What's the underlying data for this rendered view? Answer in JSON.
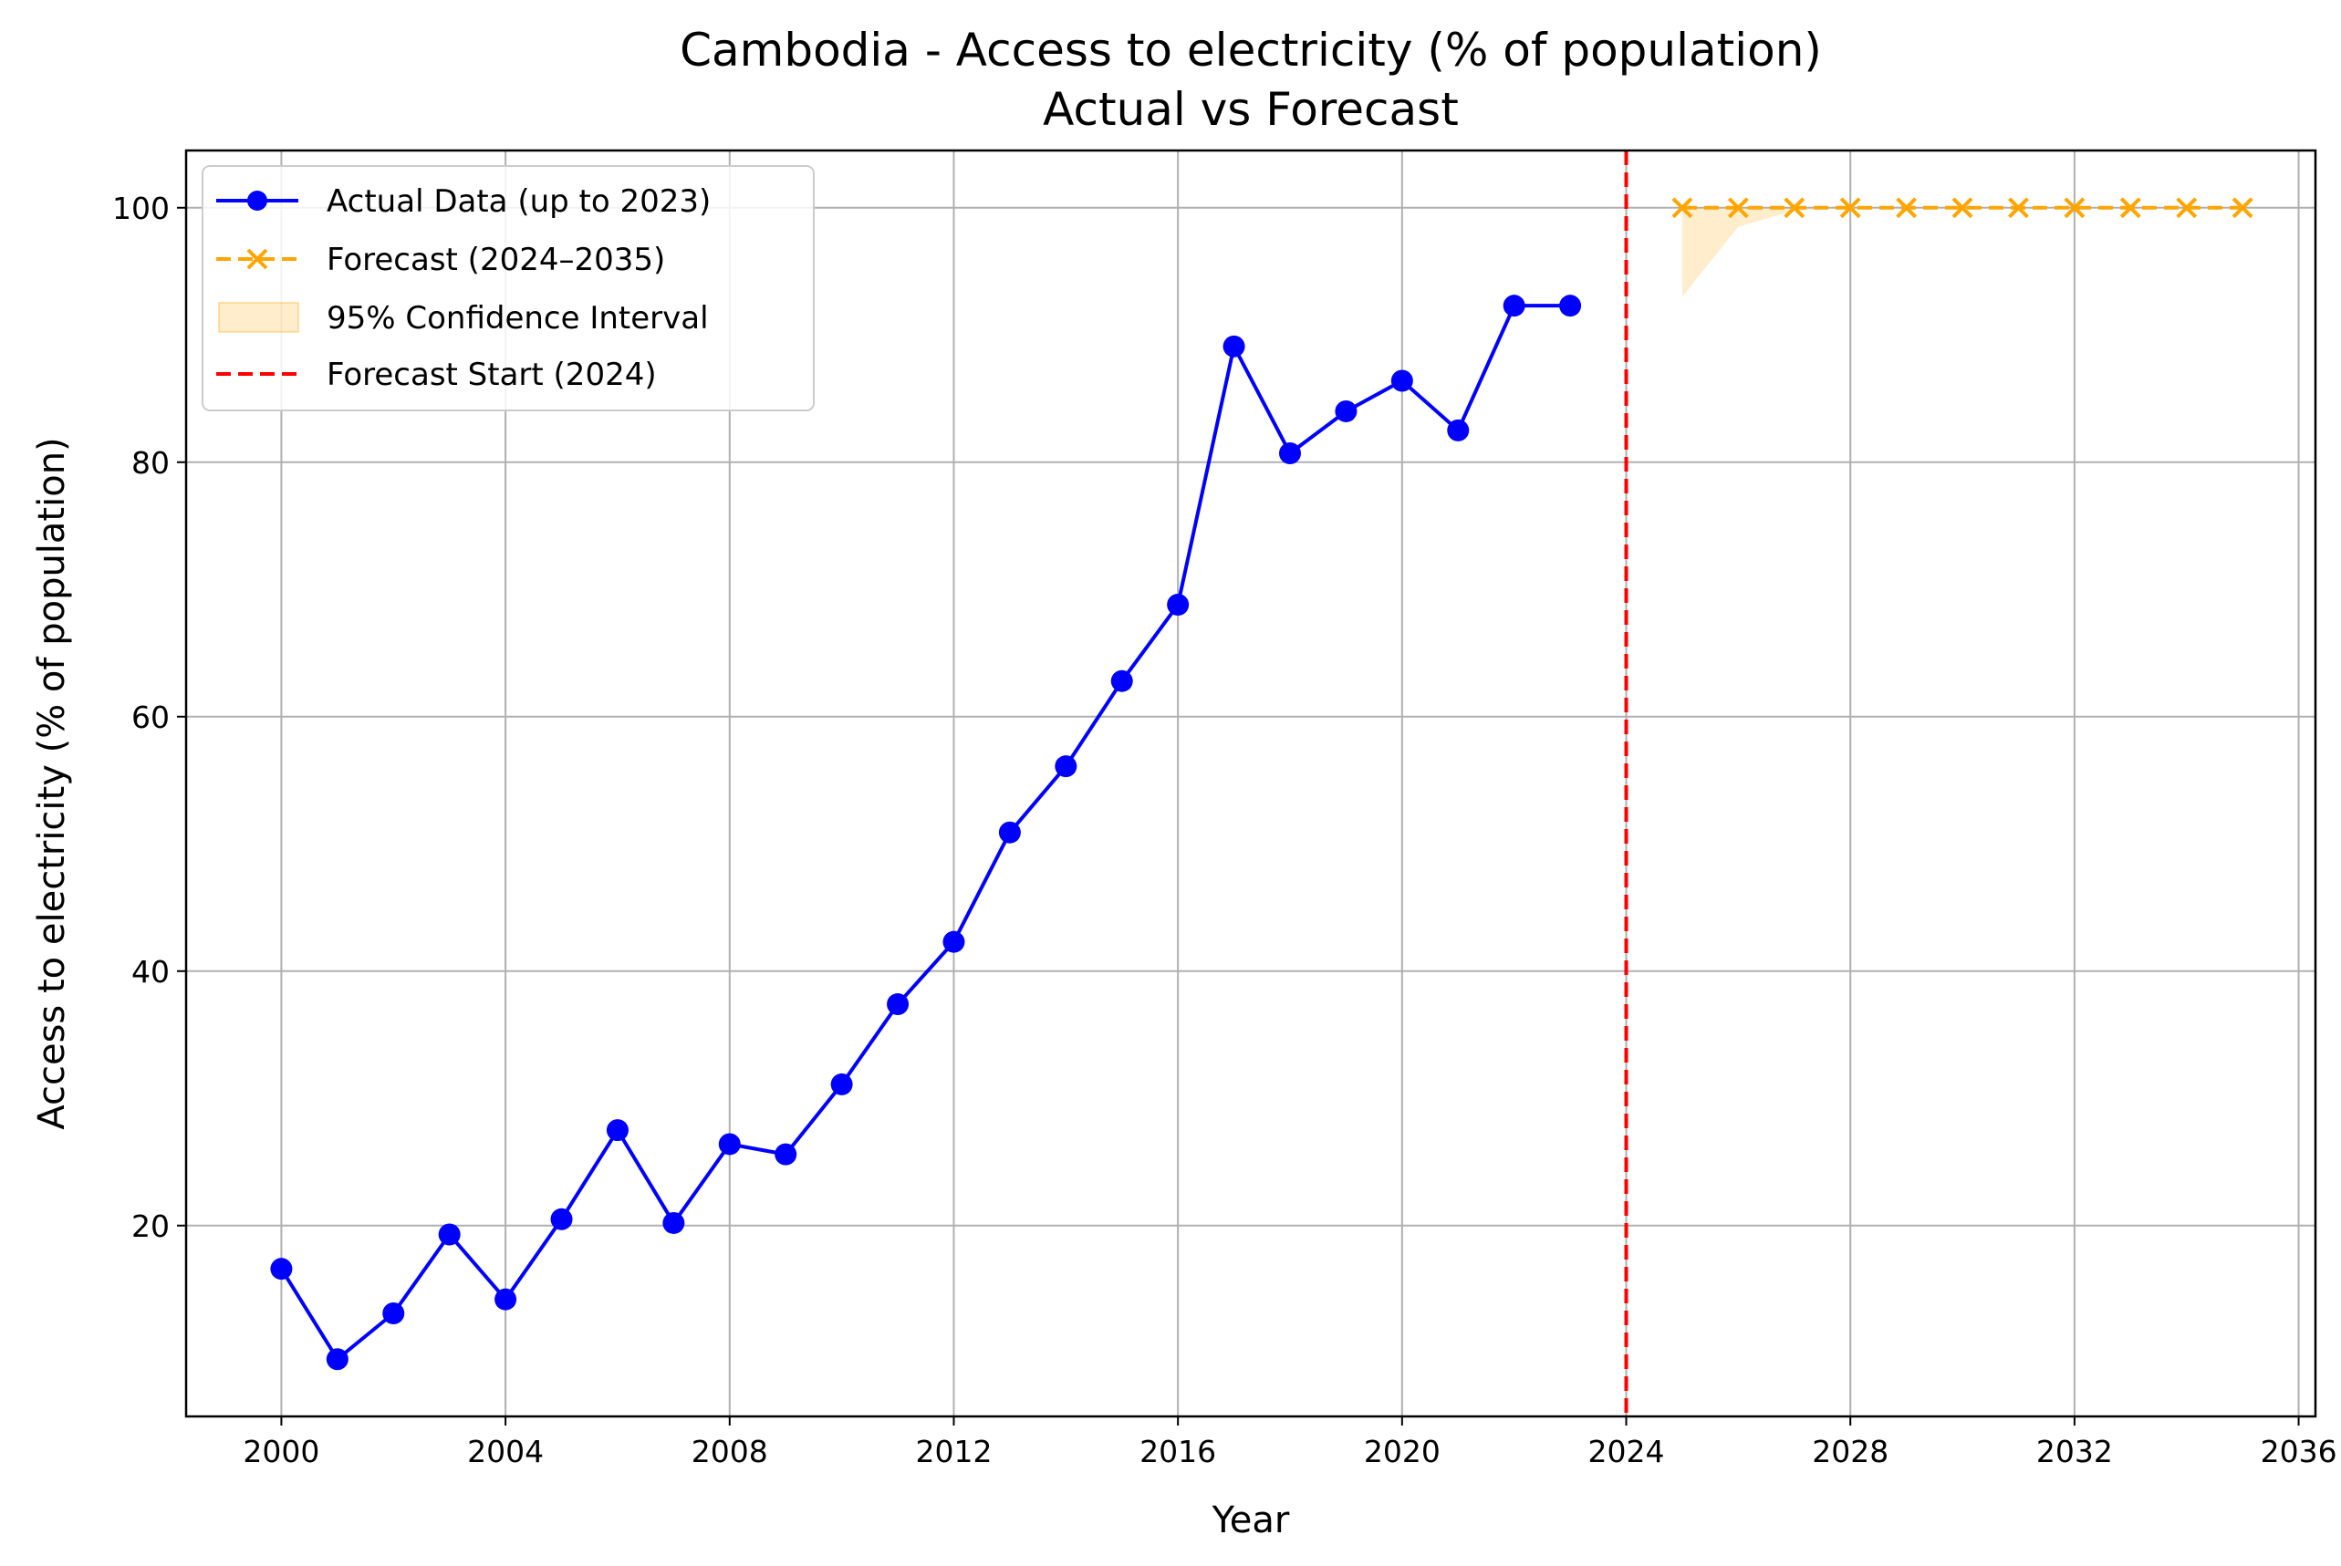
{
  "chart_data": {
    "type": "line",
    "title": "Cambodia - Access to electricity (% of population)",
    "subtitle": "Actual vs Forecast",
    "xlabel": "Year",
    "ylabel": "Access to electricity (% of population)",
    "xlim": [
      1998.3,
      2036.3
    ],
    "ylim": [
      5.0,
      104.5
    ],
    "x_ticks": [
      "2000",
      "2004",
      "2008",
      "2012",
      "2016",
      "2020",
      "2024",
      "2028",
      "2032",
      "2036"
    ],
    "x_tick_values": [
      2000,
      2004,
      2008,
      2012,
      2016,
      2020,
      2024,
      2028,
      2032,
      2036
    ],
    "y_ticks": [
      "20",
      "40",
      "60",
      "80",
      "100"
    ],
    "y_tick_values": [
      20,
      40,
      60,
      80,
      100
    ],
    "grid": true,
    "legend_position": "top-left",
    "series": [
      {
        "name": "Actual Data (up to 2023)",
        "color": "#0000ff",
        "marker": "circle",
        "linestyle": "solid",
        "x": [
          2000,
          2001,
          2002,
          2003,
          2004,
          2005,
          2006,
          2007,
          2008,
          2009,
          2010,
          2011,
          2012,
          2013,
          2014,
          2015,
          2016,
          2017,
          2018,
          2019,
          2020,
          2021,
          2022,
          2023
        ],
        "y": [
          16.6,
          9.5,
          13.1,
          19.3,
          14.2,
          20.5,
          27.5,
          20.2,
          26.4,
          25.6,
          31.1,
          37.4,
          42.3,
          50.9,
          56.1,
          62.8,
          68.8,
          89.1,
          80.7,
          84.0,
          86.4,
          82.5,
          92.3,
          92.3
        ]
      },
      {
        "name": "Forecast (2024–2035)",
        "color": "#ffa500",
        "marker": "x",
        "linestyle": "dashed",
        "x": [
          2025,
          2026,
          2027,
          2028,
          2029,
          2030,
          2031,
          2032,
          2033,
          2034,
          2035
        ],
        "y": [
          100,
          100,
          100,
          100,
          100,
          100,
          100,
          100,
          100,
          100,
          100
        ]
      }
    ],
    "confidence_interval": {
      "name": "95% Confidence Interval",
      "color": "#ffa500",
      "opacity": 0.2,
      "x": [
        2025,
        2026,
        2027,
        2028,
        2029,
        2030,
        2031,
        2032,
        2033,
        2034,
        2035
      ],
      "lower": [
        93.0,
        98.5,
        99.8,
        100,
        100,
        100,
        100,
        100,
        100,
        100,
        100
      ],
      "upper": [
        100,
        100,
        100,
        100,
        100,
        100,
        100,
        100,
        100,
        100,
        100
      ]
    },
    "vertical_line": {
      "name": "Forecast Start (2024)",
      "x": 2024,
      "color": "#ff0000",
      "linestyle": "dashed"
    }
  }
}
